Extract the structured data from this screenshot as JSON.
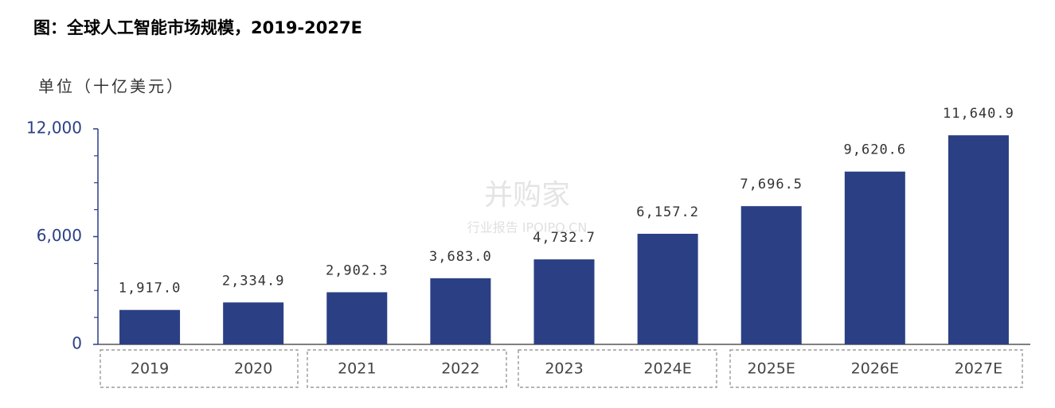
{
  "chart_data": {
    "type": "bar",
    "title": "图：全球人工智能市场规模，2019-2027E",
    "y_label": "单位（十亿美元）",
    "watermark": [
      "并购家",
      "行业报告 IPOIPO.CN"
    ],
    "categories": [
      "2019",
      "2020",
      "2021",
      "2022",
      "2023",
      "2024E",
      "2025E",
      "2026E",
      "2027E"
    ],
    "values": [
      1917.0,
      2334.9,
      2902.3,
      3683.0,
      4732.7,
      6157.2,
      7696.5,
      9620.6,
      11640.9
    ],
    "value_labels": [
      "1,917.0",
      "2,334.9",
      "2,902.3",
      "3,683.0",
      "4,732.7",
      "6,157.2",
      "7,696.5",
      "9,620.6",
      "11,640.9"
    ],
    "color": "#2b3f84",
    "ylim": [
      0,
      12000
    ],
    "yticks": [
      0,
      {
        "value": 6000,
        "label": "6,000"
      },
      {
        "value": 12000,
        "label": "12,000"
      }
    ],
    "minor_yticks": [
      1500,
      3000,
      4500,
      7500,
      9000,
      10500
    ],
    "grid": false
  }
}
